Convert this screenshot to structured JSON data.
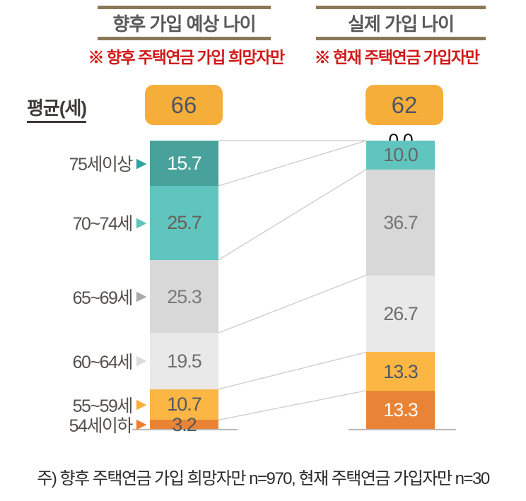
{
  "columns": [
    {
      "title": "향후 가입 예상 나이",
      "subtitle": "※  향후 주택연금 가입 희망자만",
      "average": "66"
    },
    {
      "title": "실제 가입 나이",
      "subtitle": "※  현재 주택연금 가입자만",
      "average": "62"
    }
  ],
  "average_label": "평균(세)",
  "note": "주) 향후 주택연금 가입 희망자만 n=970, 현재 주택연금 가입자만 n=30",
  "colors": {
    "header_rule": "#8A7858",
    "header_text": "#595959",
    "subtitle_red": "#D11A1A",
    "average_box": "#F6AE3B",
    "average_number": "#4D5666",
    "connector_line": "#CBCBCB",
    "baseline": "#B9B9B9",
    "category_text": "#55504B",
    "note_text": "#2B2B2B"
  },
  "chart_data": {
    "type": "bar",
    "stacked": true,
    "unit": "%",
    "ylim": [
      0,
      100
    ],
    "title_left": "향후 가입 예상 나이",
    "title_right": "실제 가입 나이",
    "categories": [
      "75세이상",
      "70~74세",
      "65~69세",
      "60~64세",
      "55~59세",
      "54세이하"
    ],
    "segment_colors": [
      "#48A29B",
      "#60C5BF",
      "#D8D8D8",
      "#E9E9E9",
      "#FBB644",
      "#E98436"
    ],
    "category_arrow_colors": [
      "#2EA39B",
      "#5EC4BE",
      "#A9A9A9",
      "#DCDCDC",
      "#FBAE3B",
      "#ED7D31"
    ],
    "label_colors": [
      [
        "#FFFFFF",
        "#6A5F58",
        "#7B7B7B",
        "#6F6F6F",
        "#4F5865",
        "#565656"
      ],
      [
        "#141414",
        "#666666",
        "#777777",
        "#6F6F6F",
        "#4F5865",
        "#FFFFFF"
      ]
    ],
    "series": [
      {
        "name": "향후 가입 예상 나이",
        "average": 66,
        "values": [
          15.7,
          25.7,
          25.3,
          19.5,
          10.7,
          3.2
        ]
      },
      {
        "name": "실제 가입 나이",
        "average": 62,
        "values": [
          0,
          10,
          36.7,
          26.7,
          13.3,
          13.3
        ]
      }
    ],
    "legend_position": "left-arrows",
    "grid": false
  }
}
